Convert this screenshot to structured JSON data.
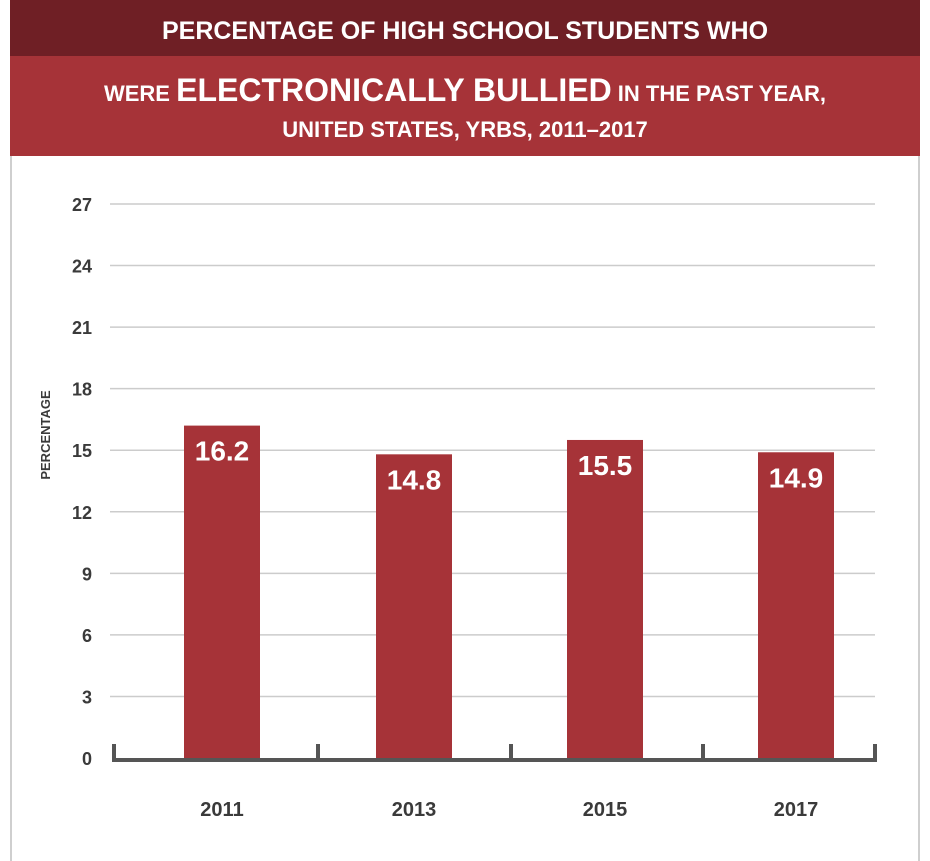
{
  "title": {
    "line1": "PERCENTAGE OF HIGH SCHOOL STUDENTS WHO",
    "line2_pre": "WERE ",
    "line2_emph": "ELECTRONICALLY BULLIED",
    "line2_post": " IN THE PAST YEAR,",
    "line3": "UNITED STATES, YRBS, 2011–2017"
  },
  "colors": {
    "bar": "#a63338",
    "band_dark": "#6f1f25",
    "band_main": "#a63338",
    "grid": "#cccccc",
    "axis": "#555555"
  },
  "chart_data": {
    "type": "bar",
    "categories": [
      "2011",
      "2013",
      "2015",
      "2017"
    ],
    "values": [
      16.2,
      14.8,
      15.5,
      14.9
    ],
    "value_labels": [
      "16.2",
      "14.8",
      "15.5",
      "14.9"
    ],
    "ylabel": "PERCENTAGE",
    "xlabel": "",
    "ylim": [
      0,
      27
    ],
    "yticks": [
      "0",
      "3",
      "6",
      "9",
      "12",
      "15",
      "18",
      "21",
      "24",
      "27"
    ],
    "grid": true
  }
}
